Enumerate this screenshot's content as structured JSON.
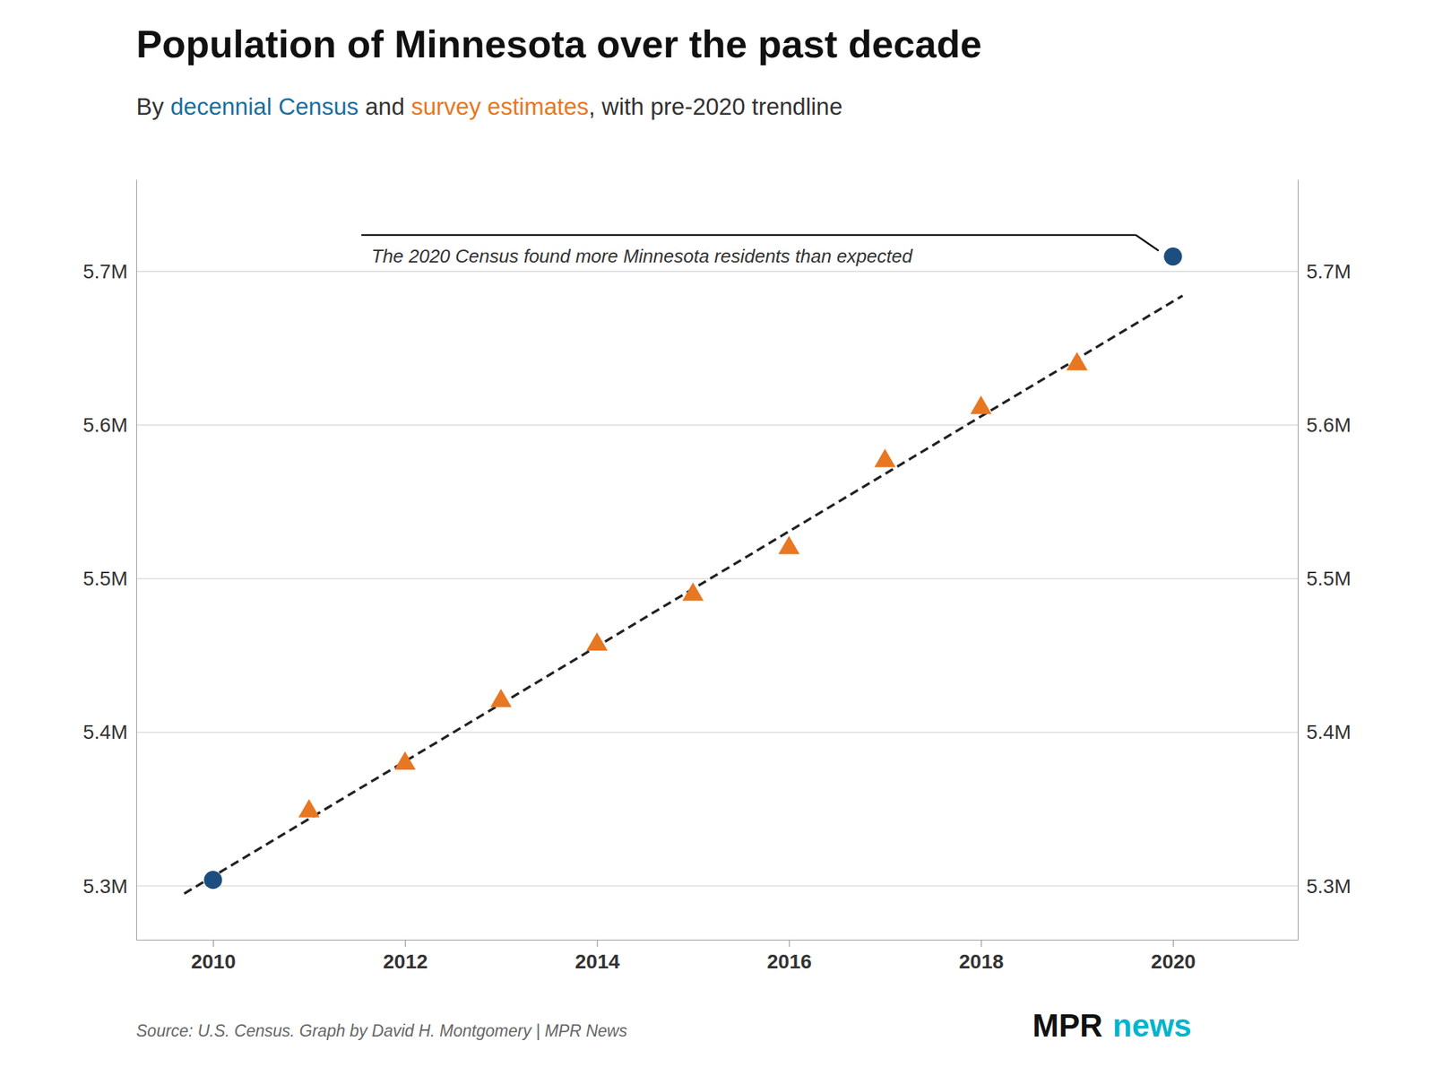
{
  "chart_data": {
    "type": "scatter",
    "title": "Population of Minnesota over the past decade",
    "subtitle": [
      {
        "text": "By ",
        "color": "#333333"
      },
      {
        "text": "decennial Census",
        "color": "#1a6fa0"
      },
      {
        "text": " and ",
        "color": "#333333"
      },
      {
        "text": "survey estimates",
        "color": "#e87722"
      },
      {
        "text": ", with pre-2020 trendline",
        "color": "#333333"
      }
    ],
    "series": [
      {
        "type": "line",
        "line_style": "dashed",
        "color": "#222222",
        "x": [
          2009.7,
          2020.1
        ],
        "values": [
          5295010.53,
          5684261.67
        ]
      },
      {
        "type": "scatter",
        "marker": "triangle",
        "color": "#e87722",
        "x": [
          2011,
          2012,
          2013,
          2014,
          2015,
          2016,
          2017,
          2018,
          2019
        ],
        "values": [
          5348562,
          5379646,
          5420380,
          5457173,
          5489594,
          5519952,
          5576606,
          5611179,
          5639632
        ]
      },
      {
        "type": "scatter",
        "marker": "circle",
        "color": "#1c4e80",
        "x": [
          2010,
          2020
        ],
        "values": [
          5303925,
          5709752
        ]
      }
    ],
    "xlim": [
      2009.2,
      2021.3
    ],
    "xticks": [
      2010,
      2012,
      2014,
      2016,
      2018,
      2020
    ],
    "ylim": [
      5265000,
      5760000
    ],
    "yticks": [
      {
        "value": 5300000,
        "label": "5.3M"
      },
      {
        "value": 5400000,
        "label": "5.4M"
      },
      {
        "value": 5500000,
        "label": "5.5M"
      },
      {
        "value": 5600000,
        "label": "5.6M"
      },
      {
        "value": 5700000,
        "label": "5.7M"
      }
    ],
    "grid": true,
    "annotations": [
      {
        "text": "The 2020 Census found more Minnesota residents than expected"
      }
    ],
    "source": "Source: U.S. Census. Graph by David H. Montgomery | MPR News",
    "logo": [
      {
        "text": "MPR",
        "color": "#111111"
      },
      {
        "text": "news",
        "color": "#00b5cc"
      }
    ]
  }
}
